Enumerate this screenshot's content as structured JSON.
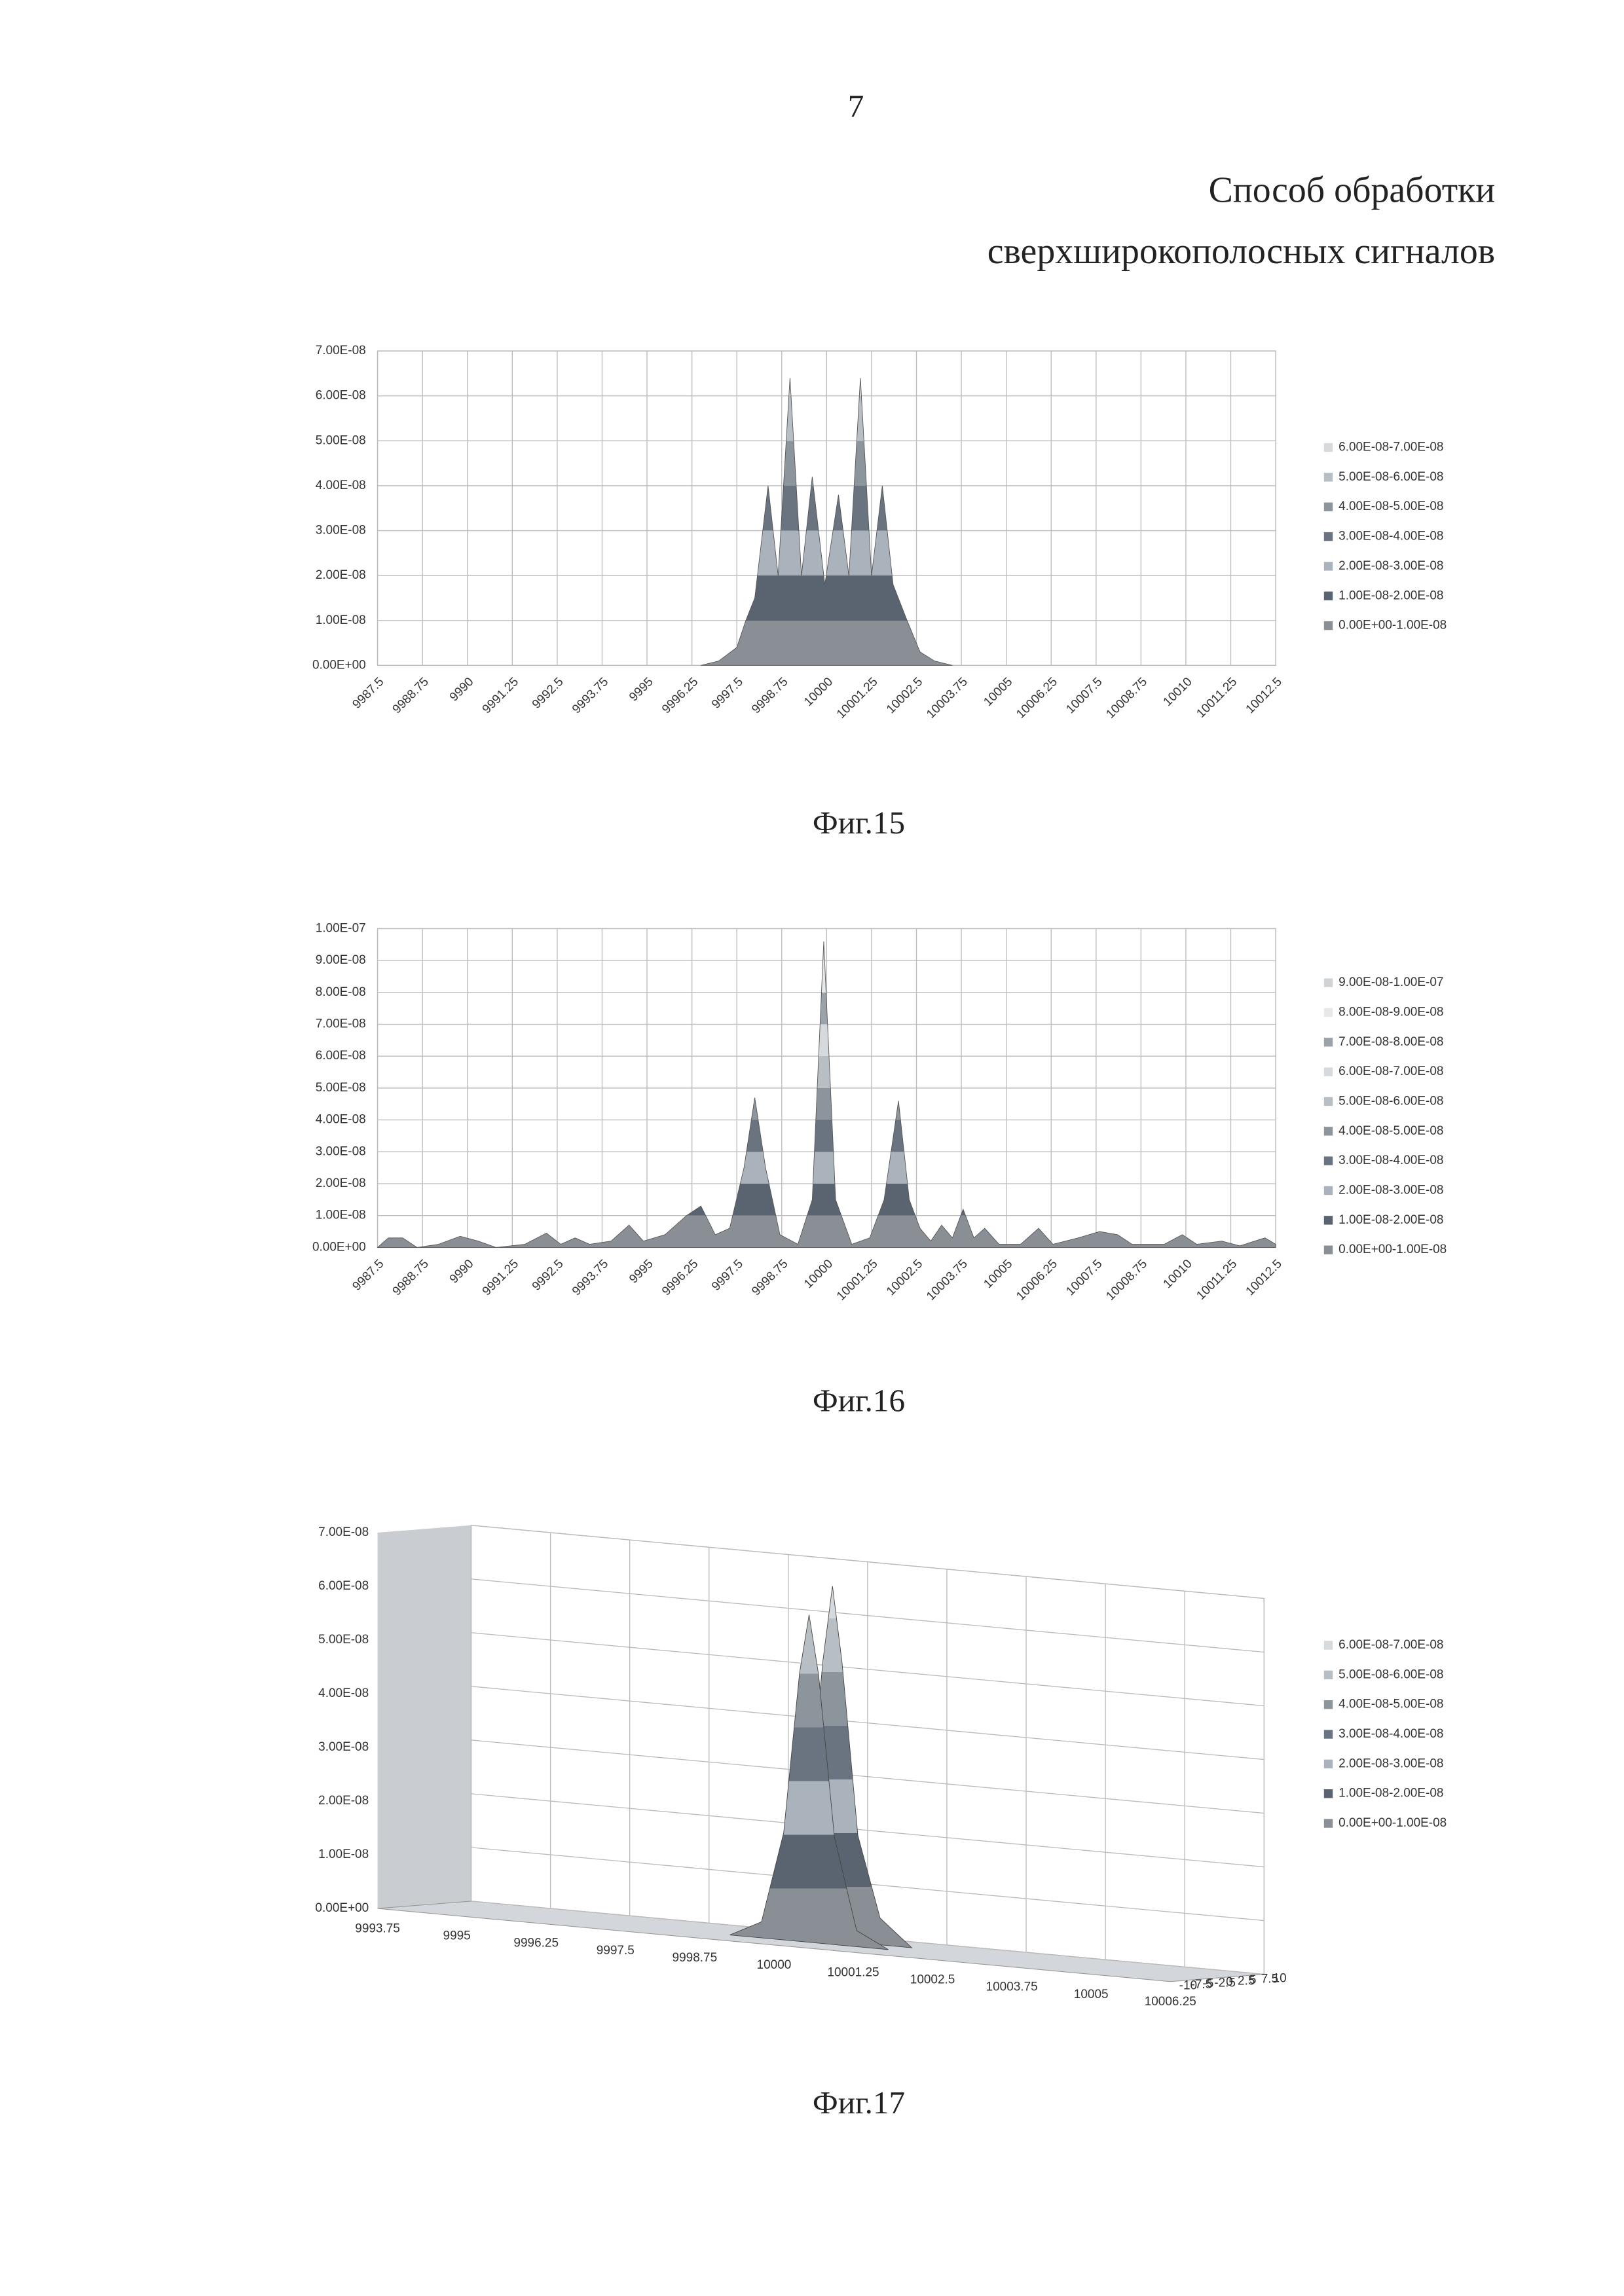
{
  "page_number": "7",
  "title": [
    "Способ обработки",
    "сверхширокополосных сигналов"
  ],
  "chart_data": [
    {
      "type": "surface",
      "caption": "Фиг.15",
      "x": [
        9996.5,
        9997,
        9997.5,
        9997.75,
        9998,
        9998.37,
        9998.65,
        9998.98,
        9999.3,
        9999.6,
        9999.95,
        10000.33,
        10000.62,
        10000.94,
        10001.25,
        10001.55,
        10001.85,
        10002.24,
        10002.6,
        10003,
        10003.5
      ],
      "values": [
        0,
        1e-09,
        4e-09,
        1e-08,
        1.5e-08,
        4e-08,
        2e-08,
        6.4e-08,
        2e-08,
        4.2e-08,
        1.8e-08,
        3.8e-08,
        2e-08,
        6.4e-08,
        2e-08,
        4e-08,
        1.8e-08,
        1e-08,
        3e-09,
        1e-09,
        0
      ],
      "xlim": [
        9987.5,
        10012.5
      ],
      "xticks": [
        9987.5,
        9988.75,
        9990,
        9991.25,
        9992.5,
        9993.75,
        9995,
        9996.25,
        9997.5,
        9998.75,
        10000,
        10001.25,
        10002.5,
        10003.75,
        10005,
        10006.25,
        10007.5,
        10008.75,
        10010,
        10011.25,
        10012.5
      ],
      "ylim": [
        0,
        7e-08
      ],
      "yticks": [
        {
          "value": 0,
          "label": "0.00E+00"
        },
        {
          "value": 1e-08,
          "label": "1.00E-08"
        },
        {
          "value": 2e-08,
          "label": "2.00E-08"
        },
        {
          "value": 3e-08,
          "label": "3.00E-08"
        },
        {
          "value": 4e-08,
          "label": "4.00E-08"
        },
        {
          "value": 5e-08,
          "label": "5.00E-08"
        },
        {
          "value": 6e-08,
          "label": "6.00E-08"
        },
        {
          "value": 7e-08,
          "label": "7.00E-08"
        }
      ],
      "grid": true,
      "legend": [
        {
          "name": "6.00E-08-7.00E-08",
          "color": "#d6dadd"
        },
        {
          "name": "5.00E-08-6.00E-08",
          "color": "#b7bec4"
        },
        {
          "name": "4.00E-08-5.00E-08",
          "color": "#8c949c"
        },
        {
          "name": "3.00E-08-4.00E-08",
          "color": "#6a7480"
        },
        {
          "name": "2.00E-08-3.00E-08",
          "color": "#aab3bc"
        },
        {
          "name": "1.00E-08-2.00E-08",
          "color": "#5a6470"
        },
        {
          "name": "0.00E+00-1.00E-08",
          "color": "#8a8f96"
        }
      ]
    },
    {
      "type": "surface",
      "caption": "Фиг.16",
      "x": [
        9987.5,
        9987.8,
        9988.2,
        9988.6,
        9989.2,
        9989.8,
        9990.3,
        9990.8,
        9991.6,
        9992.2,
        9992.6,
        9993.0,
        9993.4,
        9994.0,
        9994.5,
        9994.9,
        9995.5,
        9996.1,
        9996.5,
        9996.9,
        9997.3,
        9997.7,
        9998.0,
        9998.3,
        9998.7,
        9999.2,
        9999.6,
        9999.92,
        10000.25,
        10000.7,
        10001.2,
        10001.6,
        10002.0,
        10002.3,
        10002.6,
        10002.9,
        10003.2,
        10003.5,
        10003.8,
        10004.1,
        10004.4,
        10004.8,
        10005.4,
        10005.9,
        10006.3,
        10007.0,
        10007.6,
        10008.1,
        10008.5,
        10009.4,
        10009.9,
        10010.3,
        10011.0,
        10011.5,
        10012.2,
        10012.5
      ],
      "values": [
        0,
        3e-09,
        3e-09,
        0,
        1e-09,
        3.5e-09,
        2e-09,
        0,
        1e-09,
        4.5e-09,
        1e-09,
        3e-09,
        1e-09,
        2e-09,
        7e-09,
        2e-09,
        4e-09,
        1e-08,
        1.3e-08,
        4e-09,
        6e-09,
        2.5e-08,
        4.7e-08,
        2.5e-08,
        4e-09,
        1e-09,
        1.5e-08,
        9.6e-08,
        1.5e-08,
        1e-09,
        3e-09,
        1.5e-08,
        4.6e-08,
        1.5e-08,
        6e-09,
        2e-09,
        7e-09,
        3e-09,
        1.2e-08,
        3e-09,
        6e-09,
        1e-09,
        1e-09,
        6e-09,
        1e-09,
        3e-09,
        5e-09,
        4e-09,
        1e-09,
        1e-09,
        4e-09,
        1e-09,
        2e-09,
        5e-10,
        3e-09,
        1e-09
      ],
      "xlim": [
        9987.5,
        10012.5
      ],
      "xticks": [
        9987.5,
        9988.75,
        9990,
        9991.25,
        9992.5,
        9993.75,
        9995,
        9996.25,
        9997.5,
        9998.75,
        10000,
        10001.25,
        10002.5,
        10003.75,
        10005,
        10006.25,
        10007.5,
        10008.75,
        10010,
        10011.25,
        10012.5
      ],
      "ylim": [
        0,
        1e-07
      ],
      "yticks": [
        {
          "value": 0,
          "label": "0.00E+00"
        },
        {
          "value": 1e-08,
          "label": "1.00E-08"
        },
        {
          "value": 2e-08,
          "label": "2.00E-08"
        },
        {
          "value": 3e-08,
          "label": "3.00E-08"
        },
        {
          "value": 4e-08,
          "label": "4.00E-08"
        },
        {
          "value": 5e-08,
          "label": "5.00E-08"
        },
        {
          "value": 6e-08,
          "label": "6.00E-08"
        },
        {
          "value": 7e-08,
          "label": "7.00E-08"
        },
        {
          "value": 8e-08,
          "label": "8.00E-08"
        },
        {
          "value": 9e-08,
          "label": "9.00E-08"
        },
        {
          "value": 1e-07,
          "label": "1.00E-07"
        }
      ],
      "grid": true,
      "legend": [
        {
          "name": "9.00E-08-1.00E-07",
          "color": "#cfd3d6"
        },
        {
          "name": "8.00E-08-9.00E-08",
          "color": "#e6e8ea"
        },
        {
          "name": "7.00E-08-8.00E-08",
          "color": "#9aa2aa"
        },
        {
          "name": "6.00E-08-7.00E-08",
          "color": "#d6dadd"
        },
        {
          "name": "5.00E-08-6.00E-08",
          "color": "#b7bec4"
        },
        {
          "name": "4.00E-08-5.00E-08",
          "color": "#8c949c"
        },
        {
          "name": "3.00E-08-4.00E-08",
          "color": "#6a7480"
        },
        {
          "name": "2.00E-08-3.00E-08",
          "color": "#aab3bc"
        },
        {
          "name": "1.00E-08-2.00E-08",
          "color": "#5a6470"
        },
        {
          "name": "0.00E+00-1.00E-08",
          "color": "#8a8f96"
        }
      ]
    },
    {
      "type": "surface3d",
      "caption": "Фиг.17",
      "xlim": [
        9993.75,
        10006.25
      ],
      "xticks": [
        9993.75,
        9995,
        9996.25,
        9997.5,
        9998.75,
        10000,
        10001.25,
        10002.5,
        10003.75,
        10005,
        10006.25
      ],
      "zlim": [
        -10,
        10
      ],
      "zticks": [
        -10,
        -7.5,
        -5,
        -2.5,
        0,
        2.5,
        5,
        7.5,
        10
      ],
      "ylim": [
        0,
        7e-08
      ],
      "yticks": [
        {
          "value": 0,
          "label": "0.00E+00"
        },
        {
          "value": 1e-08,
          "label": "1.00E-08"
        },
        {
          "value": 2e-08,
          "label": "2.00E-08"
        },
        {
          "value": 3e-08,
          "label": "3.00E-08"
        },
        {
          "value": 4e-08,
          "label": "4.00E-08"
        },
        {
          "value": 5e-08,
          "label": "5.00E-08"
        },
        {
          "value": 6e-08,
          "label": "6.00E-08"
        },
        {
          "value": 7e-08,
          "label": "7.00E-08"
        }
      ],
      "grid": true,
      "surfaces": [
        {
          "z": 2.5,
          "x": [
            9998.75,
            9999.25,
            9999.6,
            9999.85,
            10000,
            10000.15,
            10000.4,
            10000.75,
            10001.25
          ],
          "values": [
            0,
            3e-09,
            2e-08,
            5.2e-08,
            6.6e-08,
            5.2e-08,
            2e-08,
            5e-09,
            0
          ]
        },
        {
          "z": -2.5,
          "x": [
            9998.75,
            9999.25,
            9999.6,
            9999.85,
            10000,
            10000.15,
            10000.4,
            10000.75,
            10001.25
          ],
          "values": [
            0,
            3e-09,
            2e-08,
            5e-08,
            6.1e-08,
            5e-08,
            2e-08,
            3e-09,
            0
          ]
        }
      ],
      "legend": [
        {
          "name": "6.00E-08-7.00E-08",
          "color": "#d6dadd"
        },
        {
          "name": "5.00E-08-6.00E-08",
          "color": "#b7bec4"
        },
        {
          "name": "4.00E-08-5.00E-08",
          "color": "#8c949c"
        },
        {
          "name": "3.00E-08-4.00E-08",
          "color": "#6a7480"
        },
        {
          "name": "2.00E-08-3.00E-08",
          "color": "#aab3bc"
        },
        {
          "name": "1.00E-08-2.00E-08",
          "color": "#5a6470"
        },
        {
          "name": "0.00E+00-1.00E-08",
          "color": "#8a8f96"
        }
      ]
    }
  ]
}
